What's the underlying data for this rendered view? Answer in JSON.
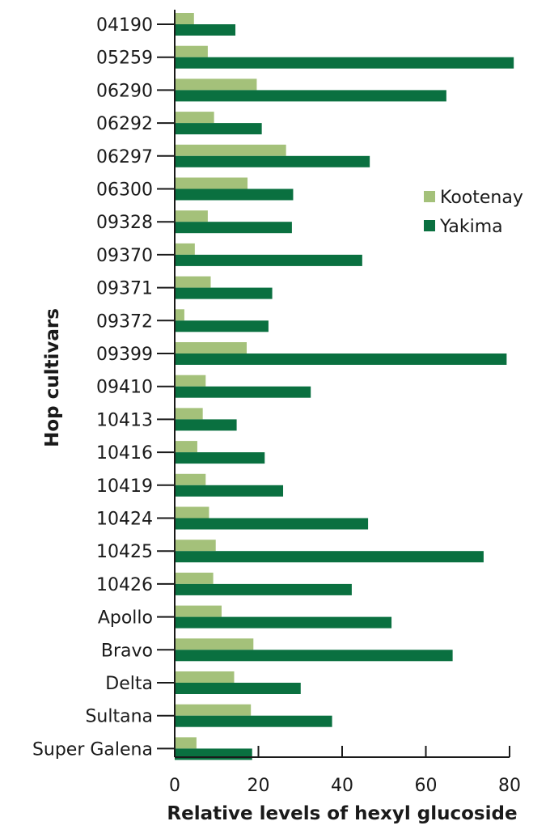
{
  "chart_data": {
    "type": "bar",
    "orientation": "horizontal",
    "categories": [
      "04190",
      "05259",
      "06290",
      "06292",
      "06297",
      "06300",
      "09328",
      "09370",
      "09371",
      "09372",
      "09399",
      "09410",
      "10413",
      "10416",
      "10419",
      "10424",
      "10425",
      "10426",
      "Apollo",
      "Bravo",
      "Delta",
      "Sultana",
      "Super Galena"
    ],
    "series": [
      {
        "name": "Kootenay",
        "color": "#a4c17a",
        "values": [
          4.6,
          7.9,
          19.6,
          9.4,
          26.6,
          17.4,
          7.9,
          4.8,
          8.6,
          2.3,
          17.2,
          7.4,
          6.7,
          5.4,
          7.4,
          8.2,
          9.8,
          9.2,
          11.2,
          18.8,
          14.2,
          18.2,
          5.2
        ]
      },
      {
        "name": "Yakima",
        "color": "#0a7040",
        "values": [
          14.5,
          81.0,
          64.9,
          20.8,
          46.6,
          28.3,
          28.0,
          44.8,
          23.3,
          22.4,
          79.3,
          32.5,
          14.8,
          21.5,
          25.9,
          46.2,
          73.8,
          42.3,
          51.8,
          66.4,
          30.1,
          37.6,
          18.5
        ]
      }
    ],
    "x_ticks": [
      "0",
      "20",
      "40",
      "60",
      "80"
    ],
    "xlim": [
      0,
      80
    ],
    "xlabel": "Relative levels of hexyl glucoside",
    "ylabel": "Hop cultivars",
    "legend_position": "right"
  }
}
